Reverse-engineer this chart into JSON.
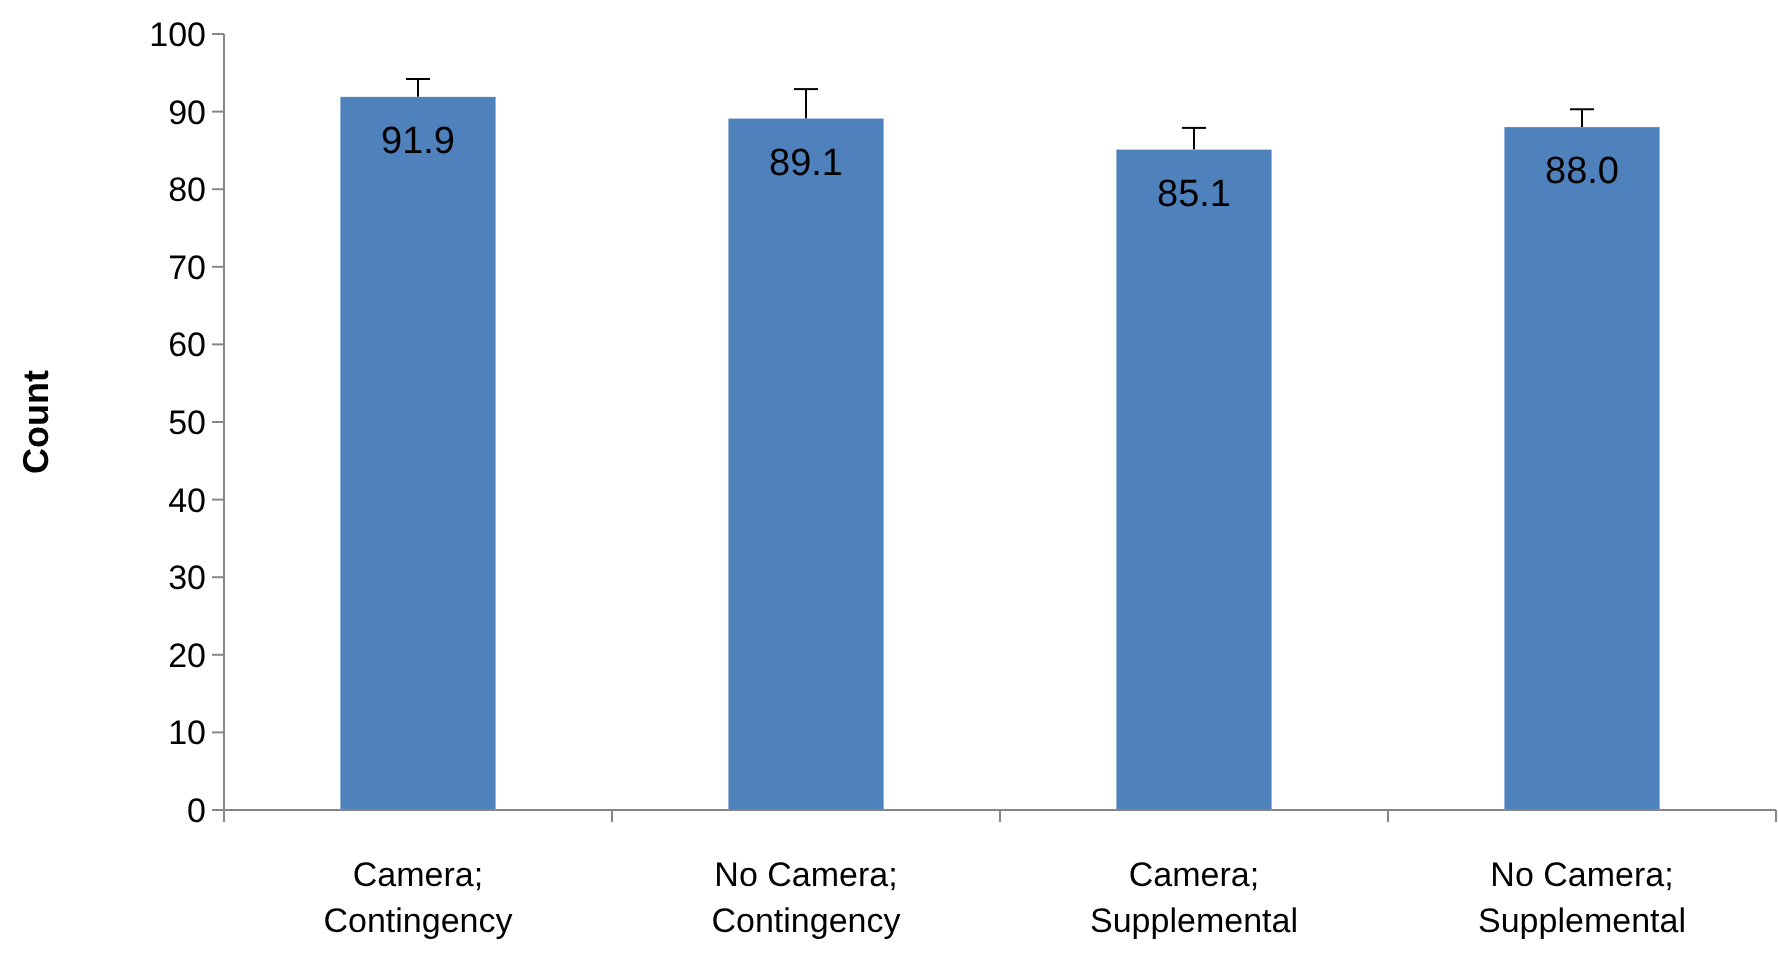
{
  "chart_data": {
    "type": "bar",
    "ylabel": "Count",
    "categories": [
      "Camera; Contingency",
      "No Camera; Contingency",
      "Camera; Supplemental",
      "No Camera; Supplemental"
    ],
    "values": [
      91.9,
      89.1,
      85.1,
      88.0
    ],
    "errors": [
      [
        91.9,
        94.2
      ],
      [
        89.1,
        92.9
      ],
      [
        85.1,
        87.9
      ],
      [
        88.0,
        90.3
      ]
    ],
    "color": "#4f81bd",
    "value_labels": [
      "91.9",
      "89.1",
      "85.1",
      "88.0"
    ],
    "ylim": [
      0,
      100
    ],
    "yticks": [
      0,
      10,
      20,
      30,
      40,
      50,
      60,
      70,
      80,
      90,
      100
    ],
    "grid": false
  }
}
